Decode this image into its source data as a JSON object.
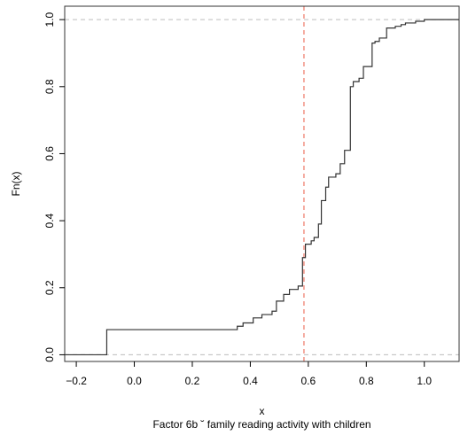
{
  "chart_data": {
    "type": "line",
    "subtype": "step-ecdf",
    "title": "",
    "xlabel": "x",
    "caption": "Factor 6b ˘ family reading activity with children",
    "ylabel": "Fn(x)",
    "xlim": [
      -0.24,
      1.12
    ],
    "ylim": [
      -0.02,
      1.04
    ],
    "xticks": [
      -0.2,
      0.0,
      0.2,
      0.4,
      0.6,
      0.8,
      1.0
    ],
    "xtick_labels": [
      "−0.2",
      "0.0",
      "0.2",
      "0.4",
      "0.6",
      "0.8",
      "1.0"
    ],
    "yticks": [
      0.0,
      0.2,
      0.4,
      0.6,
      0.8,
      1.0
    ],
    "ytick_labels": [
      "0.0",
      "0.2",
      "0.4",
      "0.6",
      "0.8",
      "1.0"
    ],
    "grid": false,
    "reference_lines": [
      {
        "orientation": "horizontal",
        "value": 0.0,
        "color": "#bdbdbd"
      },
      {
        "orientation": "horizontal",
        "value": 1.0,
        "color": "#bdbdbd"
      },
      {
        "orientation": "vertical",
        "value": 0.585,
        "color": "#f08070"
      }
    ],
    "series": [
      {
        "x": [
          -0.24,
          -0.095,
          0.355,
          0.375,
          0.41,
          0.44,
          0.475,
          0.49,
          0.515,
          0.535,
          0.565,
          0.58,
          0.59,
          0.61,
          0.62,
          0.635,
          0.645,
          0.66,
          0.67,
          0.695,
          0.71,
          0.725,
          0.745,
          0.755,
          0.775,
          0.79,
          0.82,
          0.83,
          0.845,
          0.87,
          0.9,
          0.92,
          0.935,
          0.97,
          1.0,
          1.12
        ],
        "y": [
          0.0,
          0.075,
          0.085,
          0.095,
          0.11,
          0.12,
          0.13,
          0.16,
          0.18,
          0.195,
          0.205,
          0.29,
          0.33,
          0.34,
          0.35,
          0.39,
          0.46,
          0.5,
          0.53,
          0.54,
          0.57,
          0.61,
          0.8,
          0.815,
          0.825,
          0.86,
          0.93,
          0.935,
          0.945,
          0.975,
          0.98,
          0.985,
          0.99,
          0.995,
          1.0,
          1.0
        ],
        "color": "#333333"
      }
    ]
  }
}
